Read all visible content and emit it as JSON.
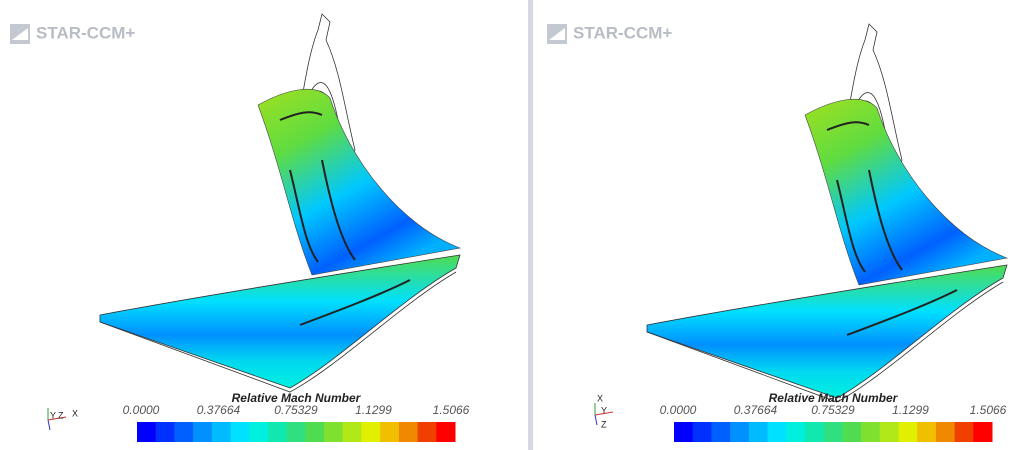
{
  "colormap": [
    "#0000ff",
    "#0030ff",
    "#0060ff",
    "#0090ff",
    "#00bcff",
    "#00e0ff",
    "#00f0e0",
    "#10e8b0",
    "#30e080",
    "#50dc50",
    "#80e030",
    "#b0e818",
    "#e0f000",
    "#f0c000",
    "#f08800",
    "#f04000",
    "#ff0000"
  ],
  "panels": [
    {
      "logo": "STAR-CCM+",
      "axes": [
        "Y",
        "Z",
        "X"
      ],
      "colorbar": {
        "title": "Relative Mach Number",
        "ticks": [
          "0.0000",
          "0.37664",
          "0.75329",
          "1.1299",
          "1.5066"
        ]
      }
    },
    {
      "logo": "STAR-CCM+",
      "axes": [
        "X",
        "Y",
        "Z"
      ],
      "colorbar": {
        "title": "Relative Mach Number",
        "ticks": [
          "0.0000",
          "0.37664",
          "0.75329",
          "1.1299",
          "1.5066"
        ]
      }
    }
  ]
}
